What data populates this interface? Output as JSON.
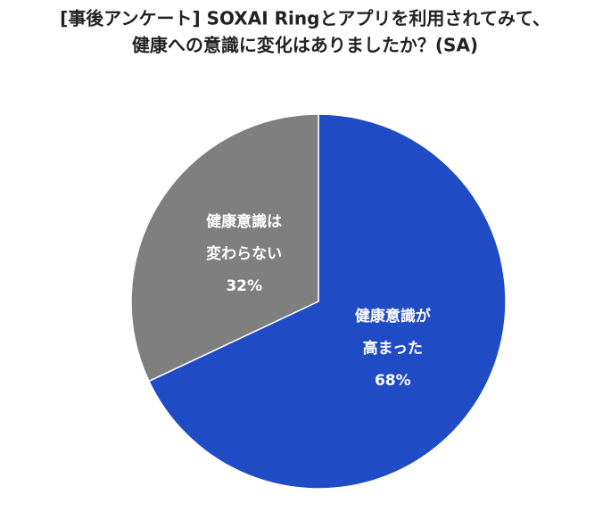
{
  "chart_data": {
    "type": "pie",
    "title": [
      "[事後アンケート] SOXAI Ringとアプリを利用されてみて、",
      "健康への意識に変化はありましたか？(SA)"
    ],
    "categories": [
      [
        "健康意識が",
        "高まった"
      ],
      [
        "健康意識は",
        "変わらない"
      ]
    ],
    "values": [
      68,
      32
    ],
    "value_labels": [
      "68%",
      "32%"
    ],
    "colors": [
      "#1f4bc4",
      "#7f7f7f"
    ]
  }
}
